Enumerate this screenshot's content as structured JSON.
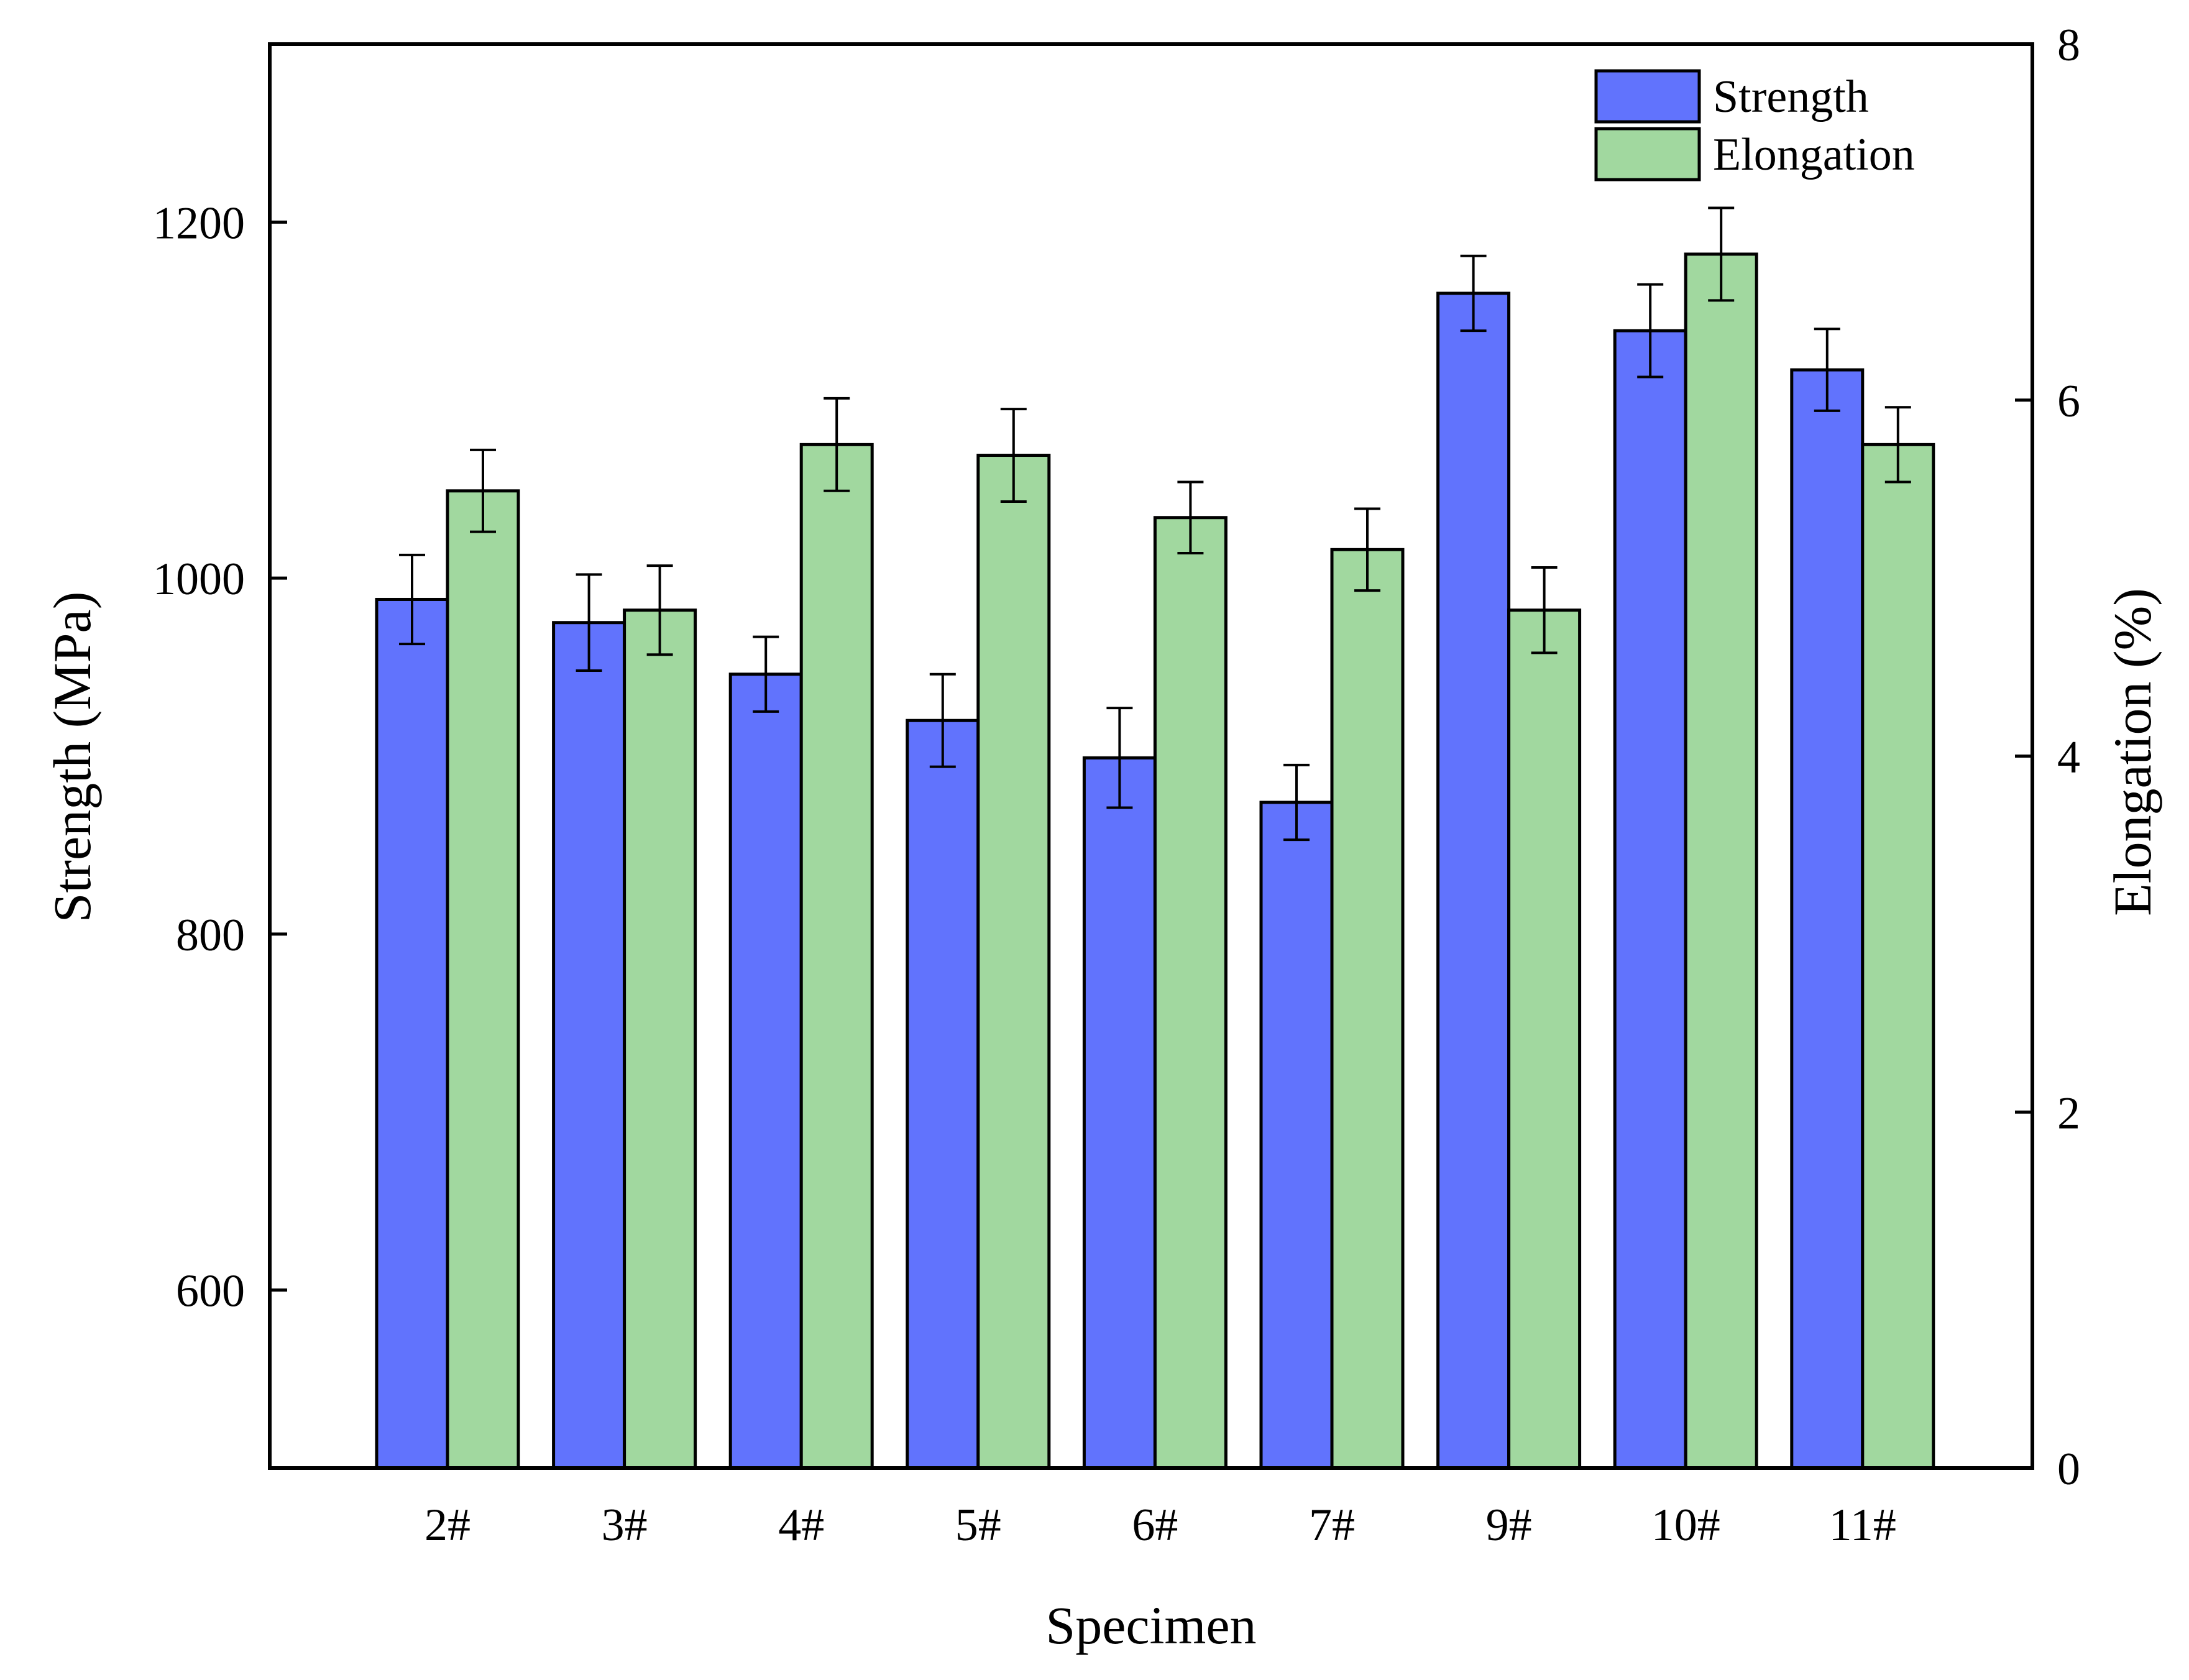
{
  "chart_data": {
    "type": "bar",
    "categories": [
      "2#",
      "3#",
      "4#",
      "5#",
      "6#",
      "7#",
      "9#",
      "10#",
      "11#"
    ],
    "xlabel": "Specimen",
    "ylabel": "Strength (MPa)",
    "y2label": "Elongation (%)",
    "ylim": [
      500,
      1300
    ],
    "y2lim": [
      0,
      8
    ],
    "yticks": [
      600,
      800,
      1000,
      1200
    ],
    "y2ticks": [
      0,
      2,
      4,
      6,
      8
    ],
    "legend_position": "top-right",
    "grid": false,
    "series": [
      {
        "name": "Strength",
        "axis": "left",
        "color": "#6173fd",
        "values": [
          988,
          975,
          946,
          920,
          899,
          874,
          1160,
          1139,
          1117
        ],
        "errors": [
          25,
          27,
          21,
          26,
          28,
          21,
          21,
          26,
          23
        ]
      },
      {
        "name": "Elongation",
        "axis": "right",
        "color": "#a1d89f",
        "values": [
          5.49,
          4.82,
          5.75,
          5.69,
          5.34,
          5.16,
          4.82,
          6.82,
          5.75
        ],
        "errors": [
          0.23,
          0.25,
          0.26,
          0.26,
          0.2,
          0.23,
          0.24,
          0.26,
          0.21
        ]
      }
    ]
  }
}
